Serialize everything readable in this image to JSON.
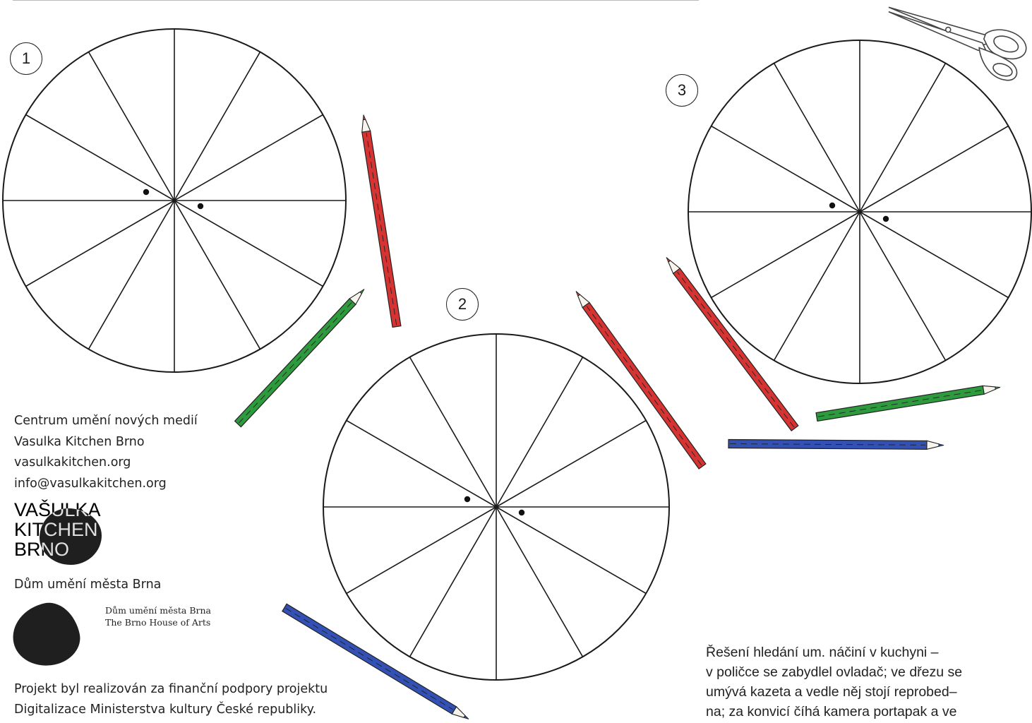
{
  "wheels": [
    {
      "number": "1"
    },
    {
      "number": "2"
    },
    {
      "number": "3"
    }
  ],
  "pencils": [
    {
      "color": "#d63333"
    },
    {
      "color": "#2e9a3e"
    },
    {
      "color": "#d63333"
    },
    {
      "color": "#d63333"
    },
    {
      "color": "#2e9a3e"
    },
    {
      "color": "#3350b5"
    },
    {
      "color": "#3350b5"
    }
  ],
  "info": {
    "org": "Centrum umění nových medií",
    "name": "Vasulka Kitchen Brno",
    "web": "vasulkakitchen.org",
    "email": "info@vasulkakitchen.org"
  },
  "logo_vkb": {
    "lines": [
      "VAŠULKA",
      "KITCHEN",
      "BRNO"
    ]
  },
  "dum": {
    "title": "Dům umění města Brna",
    "name_cz": "Dům umění města Brna",
    "name_en": "The Brno House of Arts"
  },
  "support": {
    "line1": "Projekt byl realizován za finanční podpory projektu",
    "line2": "Digitalizace Ministerstva kultury České republiky."
  },
  "solution": {
    "line1": "Řešení hledání um. náčiní v kuchyni –",
    "line2": "v poličce se zabydlel ovladač; ve dřezu se",
    "line3": "umývá kazeta a vedle něj stojí reprobed–",
    "line4": "na; za konvicí číhá kamera portapak a ve"
  },
  "icons": {
    "scissors": "scissors-icon",
    "pencil": "pencil-icon"
  }
}
